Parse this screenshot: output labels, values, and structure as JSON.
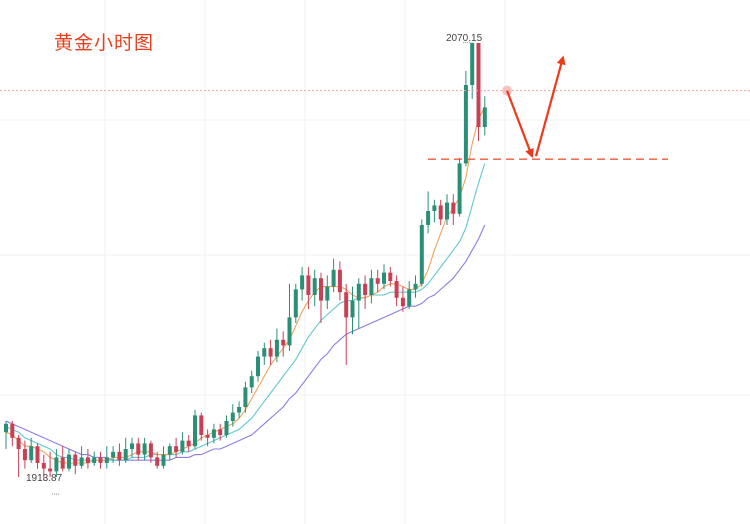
{
  "title": "黄金小时图",
  "labels": {
    "high": "2070.15",
    "low": "1913.87"
  },
  "colors": {
    "up": "#2a8f76",
    "down": "#c94055",
    "ma_fast": "#f0a25a",
    "ma_mid": "#62c6cf",
    "ma_slow": "#8b7ee0",
    "arrow": "#ee3a1c",
    "support": "#ef5a3d",
    "price_line": "#f0a0a0",
    "grid": "#f0f0f0"
  },
  "chart_data": {
    "type": "candlestick",
    "title": "黄金小时图",
    "y_range": [
      1905,
      2080
    ],
    "high_annotation": 2070.15,
    "low_annotation": 1913.87,
    "current_price_line": 2053,
    "support_level": 2028.5,
    "projected_path": [
      {
        "from": 2053,
        "to": 2028.5,
        "direction": "down"
      },
      {
        "from": 2028.5,
        "to": 2062,
        "direction": "up"
      }
    ],
    "candles": [
      [
        1931,
        1934,
        1935,
        1925
      ],
      [
        1934,
        1929,
        1935,
        1926
      ],
      [
        1929,
        1925,
        1930,
        1915
      ],
      [
        1925,
        1921,
        1928,
        1918
      ],
      [
        1921,
        1926,
        1929,
        1920
      ],
      [
        1926,
        1920,
        1927,
        1918
      ],
      [
        1920,
        1918,
        1923,
        1914
      ],
      [
        1918,
        1917,
        1924,
        1915
      ],
      [
        1917,
        1922,
        1925,
        1915
      ],
      [
        1922,
        1918,
        1926,
        1917
      ],
      [
        1918,
        1923,
        1925,
        1917
      ],
      [
        1923,
        1919,
        1924,
        1916
      ],
      [
        1919,
        1922,
        1926,
        1918
      ],
      [
        1922,
        1920,
        1925,
        1918
      ],
      [
        1920,
        1922,
        1924,
        1919
      ],
      [
        1922,
        1920,
        1924,
        1918
      ],
      [
        1920,
        1922,
        1926,
        1918
      ],
      [
        1922,
        1924,
        1926,
        1920
      ],
      [
        1924,
        1921,
        1927,
        1919
      ],
      [
        1921,
        1925,
        1929,
        1920
      ],
      [
        1925,
        1927,
        1929,
        1922
      ],
      [
        1927,
        1923,
        1929,
        1921
      ],
      [
        1923,
        1927,
        1929,
        1921
      ],
      [
        1927,
        1922,
        1928,
        1920
      ],
      [
        1922,
        1919,
        1924,
        1918
      ],
      [
        1919,
        1923,
        1926,
        1918
      ],
      [
        1923,
        1926,
        1927,
        1921
      ],
      [
        1926,
        1924,
        1929,
        1922
      ],
      [
        1924,
        1928,
        1931,
        1923
      ],
      [
        1928,
        1926,
        1930,
        1924
      ],
      [
        1926,
        1937,
        1939,
        1925
      ],
      [
        1937,
        1930,
        1938,
        1928
      ],
      [
        1930,
        1929,
        1932,
        1926
      ],
      [
        1929,
        1932,
        1934,
        1927
      ],
      [
        1932,
        1930,
        1934,
        1928
      ],
      [
        1930,
        1935,
        1937,
        1929
      ],
      [
        1935,
        1938,
        1941,
        1933
      ],
      [
        1938,
        1940,
        1942,
        1936
      ],
      [
        1940,
        1947,
        1949,
        1938
      ],
      [
        1947,
        1951,
        1953,
        1945
      ],
      [
        1951,
        1958,
        1960,
        1949
      ],
      [
        1958,
        1961,
        1963,
        1955
      ],
      [
        1961,
        1958,
        1964,
        1955
      ],
      [
        1958,
        1964,
        1968,
        1956
      ],
      [
        1964,
        1962,
        1967,
        1958
      ],
      [
        1962,
        1972,
        1984,
        1960
      ],
      [
        1972,
        1982,
        1984,
        1970
      ],
      [
        1982,
        1987,
        1990,
        1978
      ],
      [
        1987,
        1980,
        1990,
        1975
      ],
      [
        1980,
        1986,
        1989,
        1976
      ],
      [
        1986,
        1978,
        1988,
        1970
      ],
      [
        1978,
        1983,
        1987,
        1975
      ],
      [
        1983,
        1989,
        1993,
        1981
      ],
      [
        1989,
        1981,
        1992,
        1978
      ],
      [
        1981,
        1972,
        1984,
        1955
      ],
      [
        1972,
        1978,
        1983,
        1966
      ],
      [
        1978,
        1984,
        1986,
        1968
      ],
      [
        1984,
        1980,
        1987,
        1975
      ],
      [
        1980,
        1986,
        1989,
        1977
      ],
      [
        1986,
        1984,
        1989,
        1981
      ],
      [
        1984,
        1988,
        1991,
        1982
      ],
      [
        1988,
        1985,
        1990,
        1983
      ],
      [
        1985,
        1979,
        1987,
        1976
      ],
      [
        1979,
        1976,
        1983,
        1974
      ],
      [
        1976,
        1982,
        1985,
        1975
      ],
      [
        1982,
        1984,
        1987,
        1979
      ],
      [
        1984,
        2005,
        2007,
        1983
      ],
      [
        2005,
        2010,
        2017,
        2002
      ],
      [
        2010,
        2012,
        2014,
        2006
      ],
      [
        2012,
        2007,
        2014,
        2005
      ],
      [
        2007,
        2013,
        2016,
        2005
      ],
      [
        2013,
        2009,
        2016,
        2005
      ],
      [
        2009,
        2027,
        2029,
        2008
      ],
      [
        2027,
        2055,
        2060,
        2026
      ],
      [
        2055,
        2070,
        2070.15,
        2050
      ],
      [
        2070,
        2040,
        2069,
        2035
      ],
      [
        2040,
        2047,
        2051,
        2037
      ]
    ],
    "ma_fast": [
      1931,
      1930,
      1928,
      1926,
      1926,
      1925,
      1924,
      1922,
      1921,
      1920,
      1920,
      1920,
      1920,
      1920,
      1921,
      1921,
      1921,
      1922,
      1922,
      1922,
      1923,
      1924,
      1924,
      1924,
      1923,
      1923,
      1923,
      1924,
      1925,
      1926,
      1927,
      1929,
      1930,
      1931,
      1932,
      1933,
      1934,
      1936,
      1939,
      1943,
      1947,
      1951,
      1955,
      1958,
      1961,
      1964,
      1969,
      1974,
      1978,
      1981,
      1983,
      1983,
      1983,
      1983,
      1982,
      1980,
      1979,
      1979,
      1980,
      1981,
      1983,
      1984,
      1984,
      1983,
      1982,
      1982,
      1984,
      1989,
      1996,
      2002,
      2008,
      2011,
      2015,
      2022,
      2034,
      2043,
      2047
    ],
    "ma_mid": [
      1933,
      1932,
      1931,
      1929,
      1928,
      1927,
      1926,
      1925,
      1923,
      1922,
      1922,
      1921,
      1921,
      1921,
      1921,
      1921,
      1921,
      1921,
      1921,
      1921,
      1922,
      1922,
      1922,
      1923,
      1923,
      1923,
      1923,
      1923,
      1924,
      1924,
      1925,
      1926,
      1927,
      1928,
      1929,
      1930,
      1931,
      1932,
      1934,
      1936,
      1939,
      1942,
      1945,
      1948,
      1951,
      1954,
      1957,
      1961,
      1965,
      1968,
      1971,
      1973,
      1975,
      1977,
      1978,
      1978,
      1979,
      1979,
      1980,
      1980,
      1980,
      1981,
      1981,
      1981,
      1981,
      1981,
      1982,
      1984,
      1987,
      1990,
      1993,
      1996,
      1999,
      2004,
      2012,
      2020,
      2027
    ],
    "ma_slow": [
      1935,
      1934,
      1933,
      1932,
      1931,
      1930,
      1929,
      1928,
      1927,
      1926,
      1925,
      1924,
      1923,
      1923,
      1922,
      1922,
      1922,
      1921,
      1921,
      1921,
      1921,
      1921,
      1921,
      1921,
      1921,
      1921,
      1921,
      1922,
      1922,
      1922,
      1923,
      1923,
      1924,
      1925,
      1925,
      1926,
      1927,
      1928,
      1929,
      1930,
      1932,
      1934,
      1936,
      1938,
      1940,
      1943,
      1945,
      1948,
      1951,
      1954,
      1957,
      1959,
      1962,
      1964,
      1966,
      1967,
      1968,
      1969,
      1970,
      1971,
      1972,
      1973,
      1974,
      1975,
      1976,
      1976,
      1977,
      1979,
      1980,
      1982,
      1984,
      1986,
      1989,
      1992,
      1996,
      2000,
      2005
    ]
  }
}
